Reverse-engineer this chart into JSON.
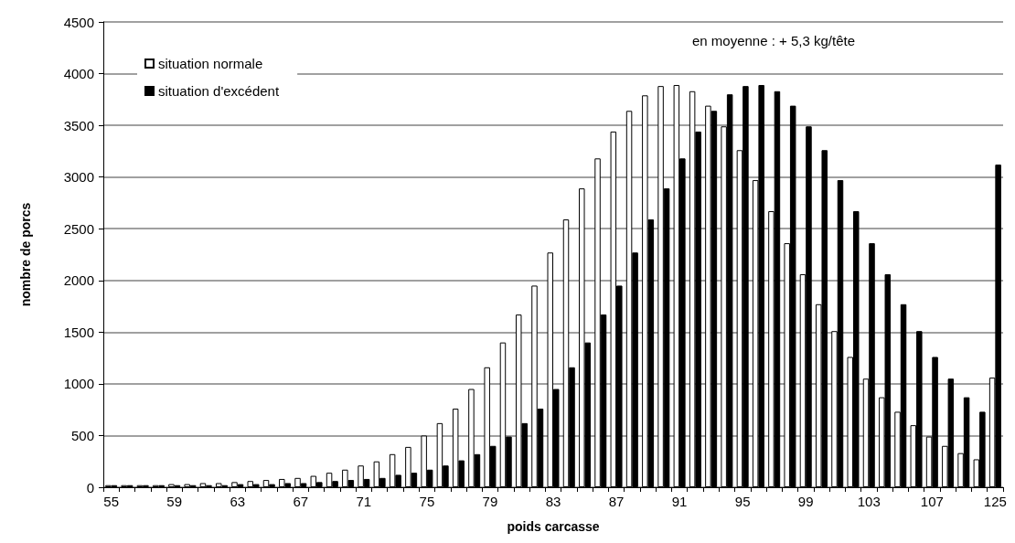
{
  "chart_data": {
    "type": "bar",
    "xlabel": "poids carcasse",
    "ylabel": "nombre de porcs",
    "categories": [
      "55",
      null,
      null,
      null,
      "59",
      null,
      null,
      null,
      "63",
      null,
      null,
      null,
      "67",
      null,
      null,
      null,
      "71",
      null,
      null,
      null,
      "75",
      null,
      null,
      null,
      "79",
      null,
      null,
      null,
      "83",
      null,
      null,
      null,
      "87",
      null,
      null,
      null,
      "91",
      null,
      null,
      null,
      "95",
      null,
      null,
      null,
      "99",
      null,
      null,
      null,
      "103",
      null,
      null,
      null,
      "107",
      null,
      null,
      null,
      "125"
    ],
    "series": [
      {
        "name": "situation normale",
        "color": "#ffffff",
        "values": [
          20,
          20,
          20,
          20,
          30,
          30,
          40,
          40,
          50,
          60,
          70,
          80,
          90,
          110,
          140,
          170,
          210,
          250,
          320,
          390,
          500,
          620,
          760,
          950,
          1160,
          1400,
          1670,
          1950,
          2270,
          2590,
          2890,
          3180,
          3440,
          3640,
          3790,
          3880,
          3890,
          3830,
          3690,
          3490,
          3260,
          2970,
          2670,
          2360,
          2060,
          1770,
          1510,
          1260,
          1050,
          870,
          730,
          600,
          490,
          400,
          330,
          270,
          1060
        ]
      },
      {
        "name": "situation d'excédent",
        "color": "#000000",
        "values": [
          20,
          20,
          20,
          20,
          20,
          20,
          20,
          20,
          30,
          30,
          30,
          40,
          40,
          50,
          60,
          70,
          80,
          90,
          120,
          140,
          170,
          210,
          260,
          320,
          400,
          490,
          620,
          760,
          950,
          1160,
          1400,
          1670,
          1950,
          2270,
          2590,
          2890,
          3180,
          3440,
          3640,
          3800,
          3880,
          3890,
          3830,
          3690,
          3490,
          3260,
          2970,
          2670,
          2360,
          2060,
          1770,
          1510,
          1260,
          1050,
          870,
          730,
          3120
        ]
      }
    ],
    "ylim": [
      0,
      4500
    ],
    "yticks": [
      0,
      500,
      1000,
      1500,
      2000,
      2500,
      3000,
      3500,
      4000,
      4500
    ],
    "grid": "y",
    "legend": "top left",
    "annotations": [
      "en moyenne : + 5,3 kg/tête"
    ]
  }
}
